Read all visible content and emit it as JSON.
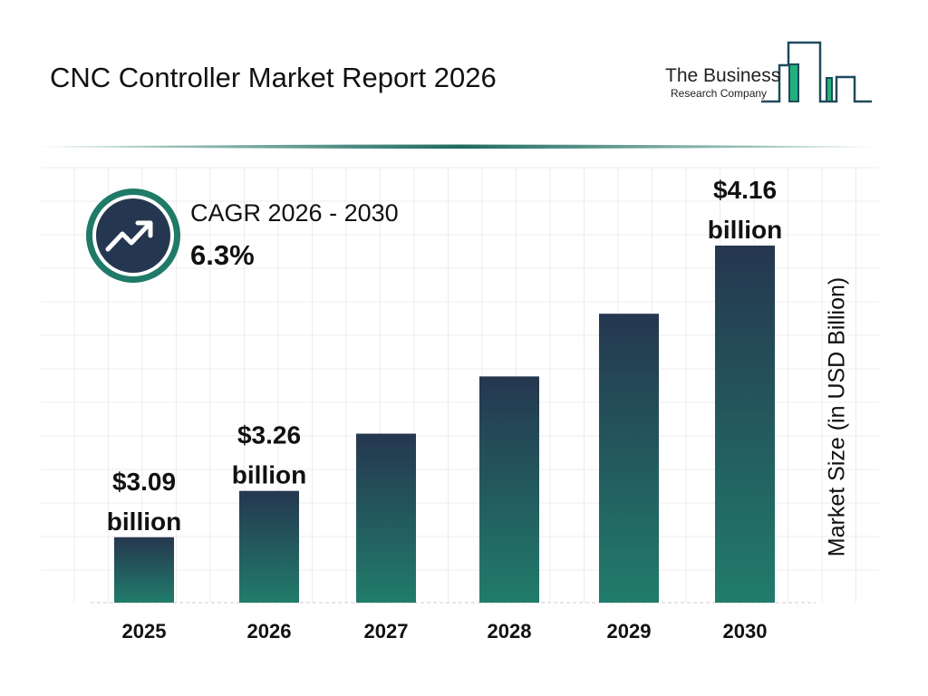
{
  "title": "CNC Controller Market Report 2026",
  "logo": {
    "line1": "The Business",
    "line2": "Research Company"
  },
  "cagr": {
    "label": "CAGR 2026 - 2030",
    "value": "6.3%",
    "icon": "trending-up-icon"
  },
  "colors": {
    "bar_top": "#253750",
    "bar_bottom": "#217c6b",
    "ring": "#1f7a68",
    "logo_green": "#22b07d"
  },
  "chart_data": {
    "type": "bar",
    "categories": [
      "2025",
      "2026",
      "2027",
      "2028",
      "2029",
      "2030"
    ],
    "values": [
      3.09,
      3.26,
      3.47,
      3.68,
      3.91,
      4.16
    ],
    "data_labels": [
      "$3.09\nbillion",
      "$3.26\nbillion",
      "",
      "",
      "",
      "$4.16\nbillion"
    ],
    "title": "CNC Controller Market Report 2026",
    "xlabel": "",
    "ylabel": "Market Size (in USD Billion)",
    "grid": true
  }
}
